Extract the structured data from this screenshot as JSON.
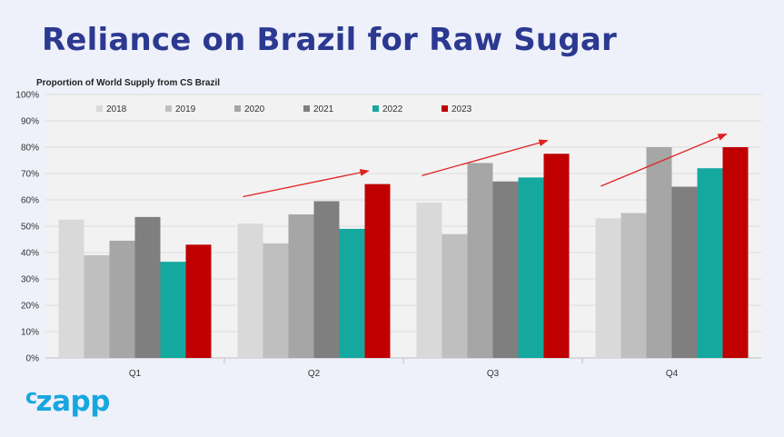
{
  "page": {
    "title": "Reliance on Brazil for Raw Sugar"
  },
  "logo": {
    "text_prefix": "c",
    "text_main": "zapp",
    "color": "#17a7e0"
  },
  "colors": {
    "title": "#2b3990",
    "plot_bg": "#f2f2f2",
    "arrow": "#e02020"
  },
  "chart_data": {
    "type": "bar",
    "title": "Proportion of World Supply from CS Brazil",
    "categories": [
      "Q1",
      "Q2",
      "Q3",
      "Q4"
    ],
    "ylim": [
      0,
      100
    ],
    "ytick_values": [
      0,
      10,
      20,
      30,
      40,
      50,
      60,
      70,
      80,
      90,
      100
    ],
    "yticks": [
      "0%",
      "10%",
      "20%",
      "30%",
      "40%",
      "50%",
      "60%",
      "70%",
      "80%",
      "90%",
      "100%"
    ],
    "grid": true,
    "legend_position": "top",
    "series": [
      {
        "name": "2018",
        "color": "#d9d9d9",
        "values": [
          52.5,
          51,
          59,
          53
        ]
      },
      {
        "name": "2019",
        "color": "#bfbfbf",
        "values": [
          39,
          43.5,
          47,
          55
        ]
      },
      {
        "name": "2020",
        "color": "#a6a6a6",
        "values": [
          44.5,
          54.5,
          74,
          80
        ]
      },
      {
        "name": "2021",
        "color": "#7f7f7f",
        "values": [
          53.5,
          59.5,
          67,
          65
        ]
      },
      {
        "name": "2022",
        "color": "#14a89e",
        "values": [
          36.5,
          49,
          68.5,
          72
        ]
      },
      {
        "name": "2023",
        "color": "#c00000",
        "values": [
          43,
          66,
          77.5,
          80
        ]
      }
    ],
    "trend_arrows": [
      {
        "category": "Q2"
      },
      {
        "category": "Q3"
      },
      {
        "category": "Q4"
      }
    ]
  }
}
